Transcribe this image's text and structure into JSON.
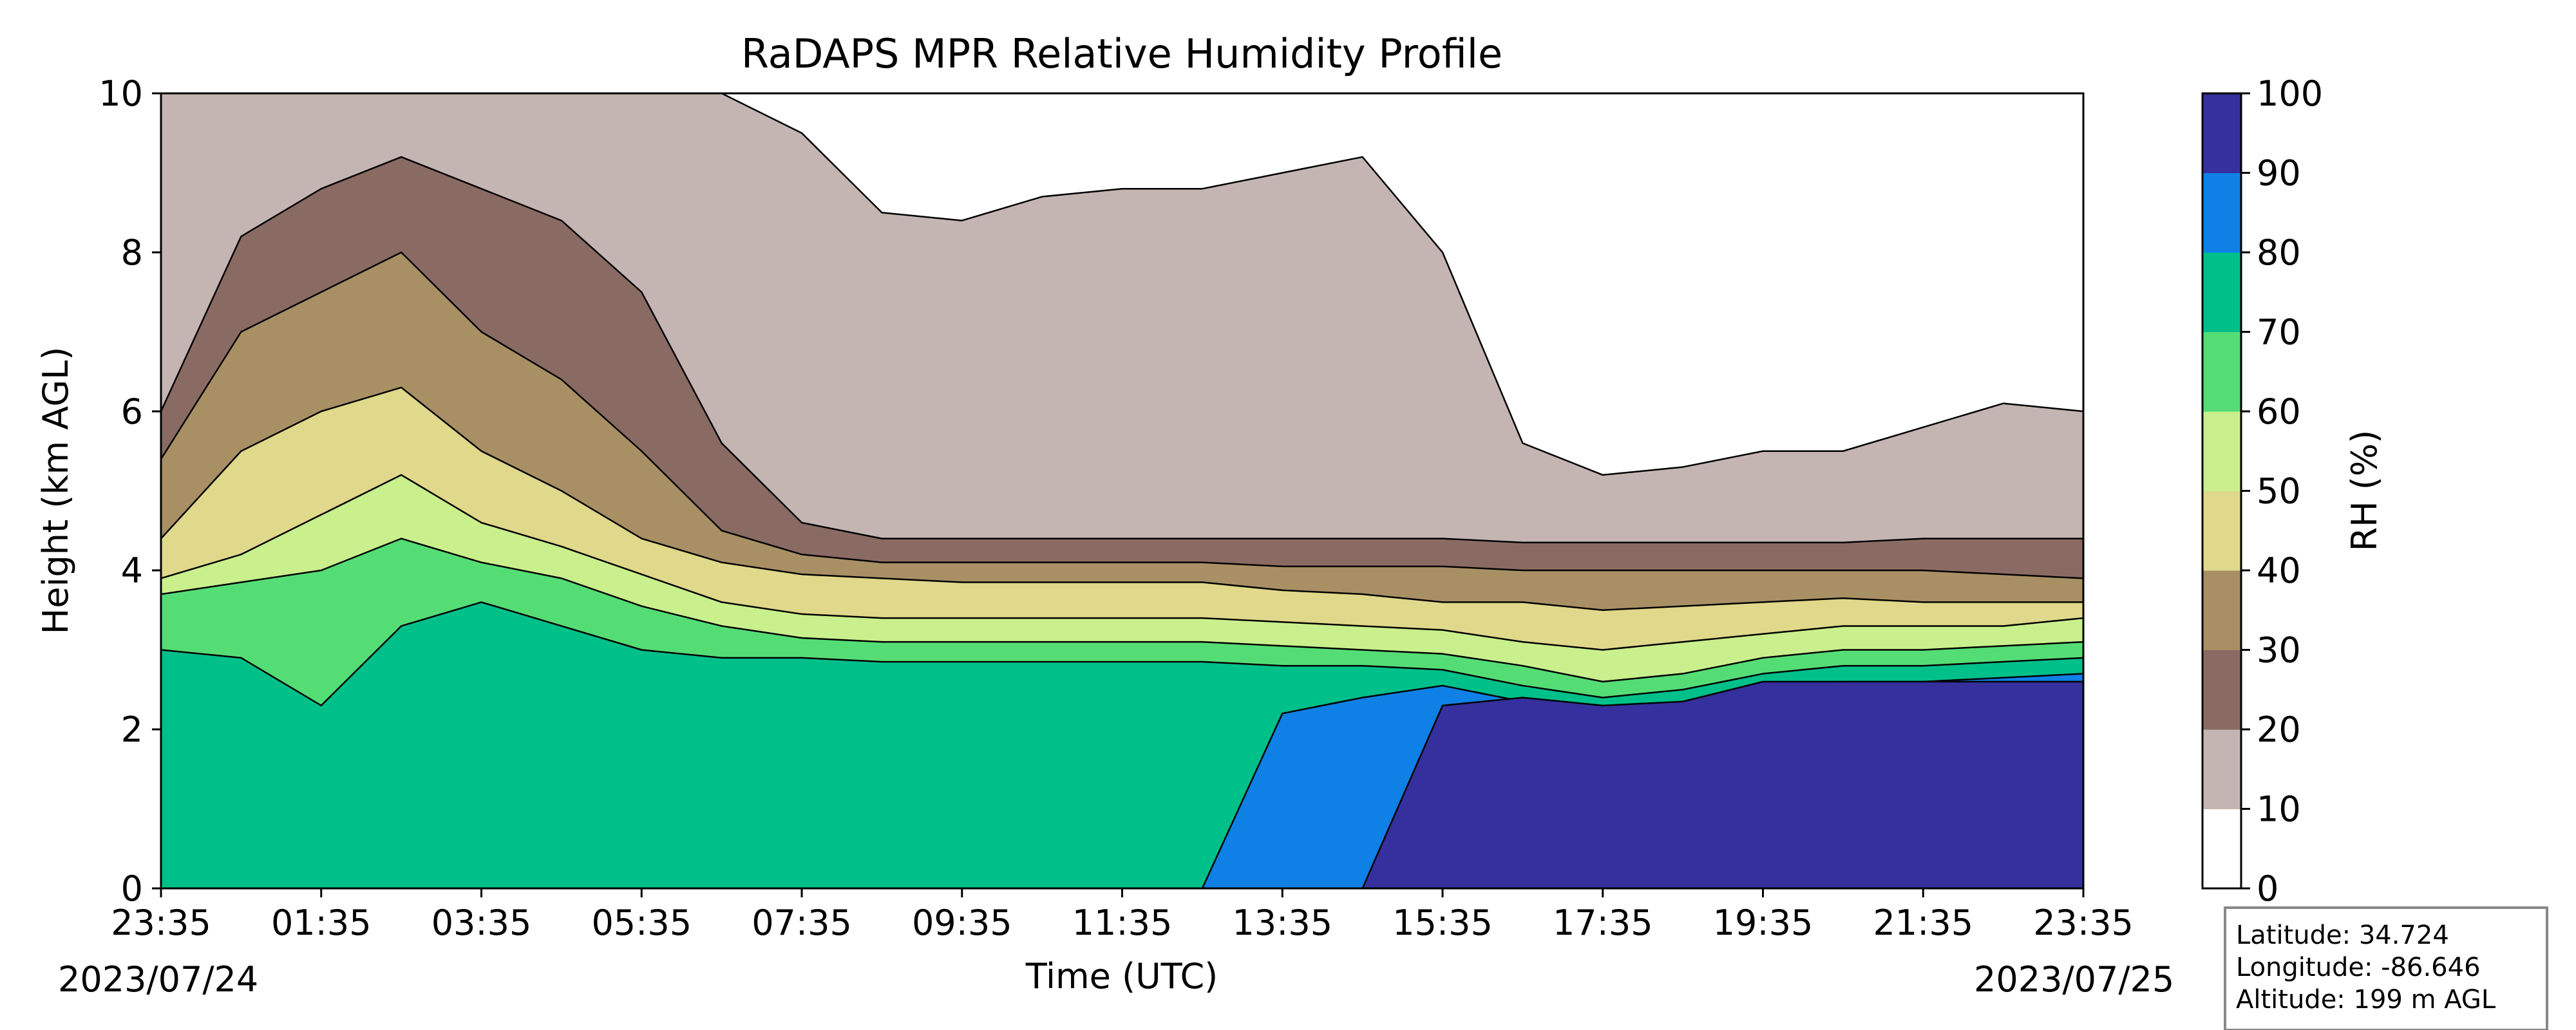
{
  "chart_data": {
    "type": "heatmap",
    "title": "RaDAPS MPR Relative Humidity Profile",
    "xlabel": "Time (UTC)",
    "ylabel": "Height (km AGL)",
    "xlim_hours": [
      0,
      24
    ],
    "ylim": [
      0,
      10
    ],
    "x_ticks": [
      "23:35",
      "01:35",
      "03:35",
      "05:35",
      "07:35",
      "09:35",
      "11:35",
      "13:35",
      "15:35",
      "17:35",
      "19:35",
      "21:35",
      "23:35"
    ],
    "y_ticks": [
      "0",
      "2",
      "4",
      "6",
      "8",
      "10"
    ],
    "start_date": "2023/07/24",
    "end_date": "2023/07/25",
    "colorbar": {
      "label": "RH (%)",
      "levels": [
        0,
        10,
        20,
        30,
        40,
        50,
        60,
        70,
        80,
        90,
        100
      ],
      "tick_labels": [
        "0",
        "10",
        "20",
        "30",
        "40",
        "50",
        "60",
        "70",
        "80",
        "90",
        "100"
      ],
      "colors": [
        "#ffffff",
        "#c4b5b3",
        "#8a6b63",
        "#a89064",
        "#e0d88a",
        "#c9f08c",
        "#55dd75",
        "#00c08a",
        "#0f80e6",
        "#35309e"
      ]
    },
    "band_boundaries_km": {
      "x_hours": [
        0,
        1,
        2,
        3,
        4,
        5,
        6,
        7,
        8,
        9,
        10,
        11,
        12,
        13,
        14,
        15,
        16,
        17,
        18,
        19,
        20,
        21,
        22,
        23,
        24
      ],
      "rh_10": [
        10,
        10,
        10,
        10,
        10,
        10,
        10,
        10,
        9.5,
        8.5,
        8.4,
        8.7,
        8.8,
        8.8,
        9,
        9.2,
        8,
        5.6,
        5.2,
        5.3,
        5.5,
        5.5,
        5.8,
        6.1,
        6
      ],
      "rh_20": [
        6,
        8.2,
        8.8,
        9.2,
        8.8,
        8.4,
        7.5,
        5.6,
        4.6,
        4.4,
        4.4,
        4.4,
        4.4,
        4.4,
        4.4,
        4.4,
        4.4,
        4.35,
        4.35,
        4.35,
        4.35,
        4.35,
        4.4,
        4.4,
        4.4
      ],
      "rh_30": [
        5.4,
        7,
        7.5,
        8,
        7,
        6.4,
        5.5,
        4.5,
        4.2,
        4.1,
        4.1,
        4.1,
        4.1,
        4.1,
        4.05,
        4.05,
        4.05,
        4,
        4,
        4,
        4,
        4,
        4,
        3.95,
        3.9
      ],
      "rh_40": [
        4.4,
        5.5,
        6,
        6.3,
        5.5,
        5,
        4.4,
        4.1,
        3.95,
        3.9,
        3.85,
        3.85,
        3.85,
        3.85,
        3.75,
        3.7,
        3.6,
        3.6,
        3.5,
        3.55,
        3.6,
        3.65,
        3.6,
        3.6,
        3.6
      ],
      "rh_50": [
        3.9,
        4.2,
        4.7,
        5.2,
        4.6,
        4.3,
        3.95,
        3.6,
        3.45,
        3.4,
        3.4,
        3.4,
        3.4,
        3.4,
        3.35,
        3.3,
        3.25,
        3.1,
        3,
        3.1,
        3.2,
        3.3,
        3.3,
        3.3,
        3.4
      ],
      "rh_60": [
        3.7,
        3.85,
        4,
        4.4,
        4.1,
        3.9,
        3.55,
        3.3,
        3.15,
        3.1,
        3.1,
        3.1,
        3.1,
        3.1,
        3.05,
        3,
        2.95,
        2.8,
        2.6,
        2.7,
        2.9,
        3,
        3,
        3.05,
        3.1
      ],
      "rh_70": [
        3.0,
        2.9,
        2.3,
        3.3,
        3.6,
        3.3,
        3.0,
        2.9,
        2.9,
        2.85,
        2.85,
        2.85,
        2.85,
        2.85,
        2.8,
        2.8,
        2.75,
        2.55,
        2.4,
        2.5,
        2.7,
        2.8,
        2.8,
        2.85,
        2.9
      ],
      "rh_80": [
        0,
        0,
        0,
        0,
        0,
        0,
        0,
        0,
        0,
        0,
        0,
        0,
        0,
        0,
        2.2,
        2.4,
        2.55,
        2.35,
        2.25,
        2.35,
        2.55,
        2.6,
        2.6,
        2.65,
        2.7
      ],
      "rh_90": [
        0,
        0,
        0,
        0,
        0,
        0,
        0,
        0,
        0,
        0,
        0,
        0,
        0,
        0,
        0,
        0,
        2.3,
        2.4,
        2.3,
        2.35,
        2.6,
        2.6,
        2.6,
        2.6,
        2.6
      ]
    },
    "station_info": {
      "latitude": "Latitude: 34.724",
      "longitude": "Longitude: -86.646",
      "altitude": "Altitude: 199 m AGL"
    }
  }
}
